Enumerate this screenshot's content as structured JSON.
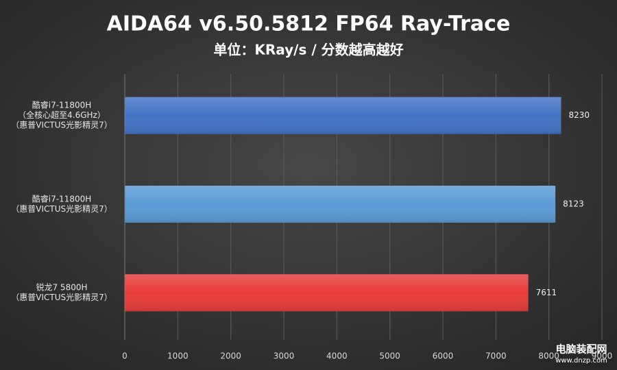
{
  "chart_data": {
    "type": "hbar",
    "title": "AIDA64 v6.50.5812 FP64 Ray-Trace",
    "subtitle": "单位：KRay/s / 分数越高越好",
    "categories": [
      [
        "酷睿i7-11800H",
        "（全核心超至4.6GHz）",
        "（惠普VICTUS光影精灵7）"
      ],
      [
        "酷睿i7-11800H",
        "（惠普VICTUS光影精灵7）"
      ],
      [
        "锐龙7 5800H",
        "（惠普VICTUS光影精灵7）"
      ]
    ],
    "values": [
      8230,
      8123,
      7611
    ],
    "colors": [
      "#4472c4",
      "#5b9bd5",
      "#e83c3c"
    ],
    "xlim": [
      0,
      9000
    ],
    "xticks": [
      0,
      1000,
      2000,
      3000,
      4000,
      5000,
      6000,
      7000,
      8000,
      9000
    ],
    "grid": true,
    "watermark": [
      "电脑装配网",
      "www.dnzp.com"
    ]
  }
}
